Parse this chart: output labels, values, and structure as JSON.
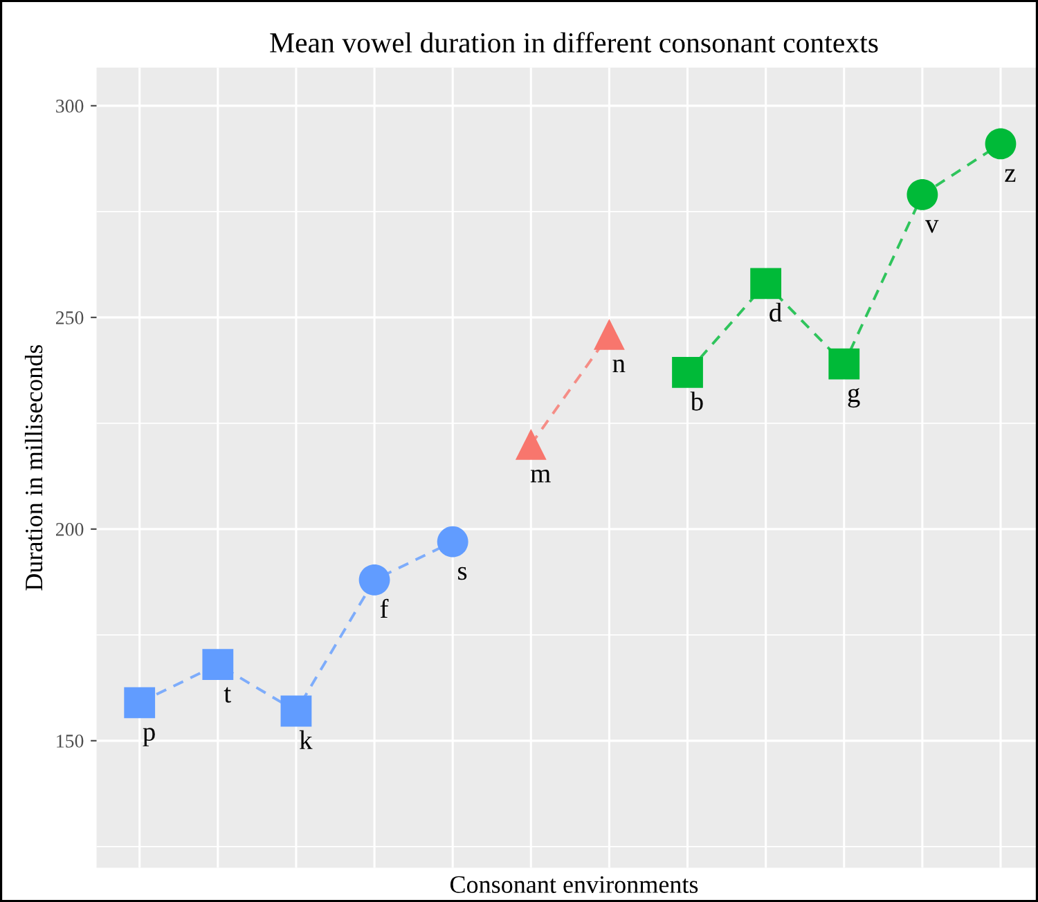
{
  "chart_data": {
    "type": "line",
    "title": "Mean vowel duration in different consonant contexts",
    "xlabel": "Consonant environments",
    "ylabel": "Duration in milliseconds",
    "categories": [
      null,
      null,
      null,
      null,
      null,
      null,
      null,
      null,
      null,
      null,
      null,
      null
    ],
    "series": [
      {
        "color": "#619cff",
        "line_style": "dashed",
        "marker": "none",
        "values": [
          159,
          168,
          157,
          188,
          197,
          null,
          null,
          null,
          null,
          null,
          null,
          null
        ]
      },
      {
        "color": "#f8766d",
        "line_style": "dashed",
        "marker": "none",
        "values": [
          null,
          null,
          null,
          null,
          null,
          220,
          246,
          null,
          null,
          null,
          null,
          null
        ]
      },
      {
        "color": "#00ba38",
        "line_style": "dashed",
        "marker": "none",
        "values": [
          null,
          null,
          null,
          null,
          null,
          null,
          null,
          237,
          258,
          239,
          279,
          291
        ]
      },
      {
        "type": "scatter",
        "marker": "square",
        "colors": [
          "#619cff",
          "#619cff",
          "#619cff",
          null,
          null,
          null,
          null,
          "#00ba38",
          "#00ba38",
          "#00ba38",
          null,
          null
        ],
        "values": [
          159,
          168,
          157,
          null,
          null,
          null,
          null,
          237,
          258,
          239,
          null,
          null
        ],
        "value_labels": [
          "p",
          "t",
          "k",
          null,
          null,
          null,
          null,
          "b",
          "d",
          "g",
          null,
          null
        ]
      },
      {
        "type": "scatter",
        "marker": "circle",
        "colors": [
          null,
          null,
          null,
          "#619cff",
          "#619cff",
          null,
          null,
          null,
          null,
          null,
          "#00ba38",
          "#00ba38"
        ],
        "values": [
          null,
          null,
          null,
          188,
          197,
          null,
          null,
          null,
          null,
          null,
          279,
          291
        ],
        "value_labels": [
          null,
          null,
          null,
          "f",
          "s",
          null,
          null,
          null,
          null,
          null,
          "v",
          "z"
        ]
      },
      {
        "type": "scatter",
        "marker": "triangle",
        "colors": [
          null,
          null,
          null,
          null,
          null,
          "#f8766d",
          "#f8766d",
          null,
          null,
          null,
          null,
          null
        ],
        "values": [
          null,
          null,
          null,
          null,
          null,
          220,
          246,
          null,
          null,
          null,
          null,
          null
        ],
        "value_labels": [
          null,
          null,
          null,
          null,
          null,
          "m",
          "n",
          null,
          null,
          null,
          null,
          null
        ]
      }
    ],
    "ylim": [
      120,
      309
    ],
    "yticks": [
      150,
      200,
      250,
      300
    ],
    "grid": true,
    "legend": false,
    "tick_labels": "y"
  }
}
